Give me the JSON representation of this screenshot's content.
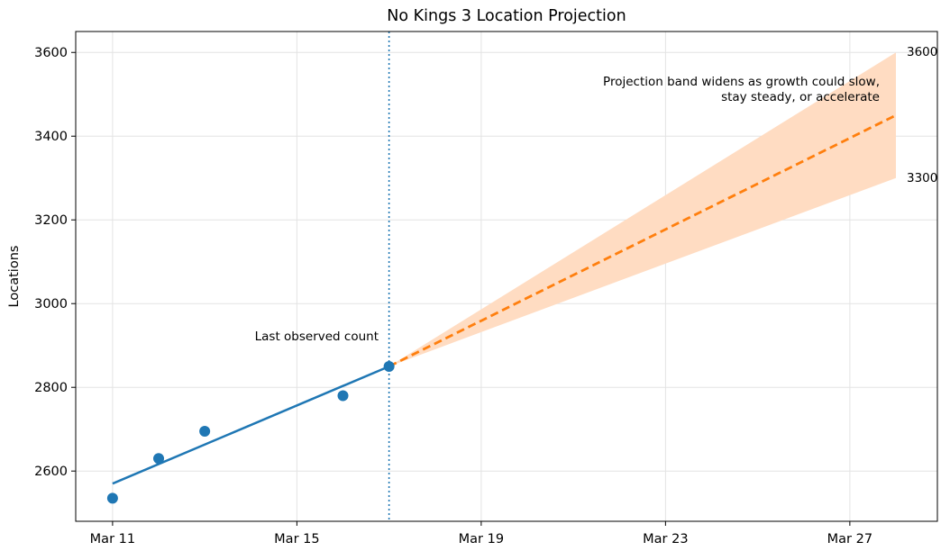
{
  "chart_data": {
    "type": "line",
    "title": "No Kings 3 Location Projection",
    "xlabel": "",
    "ylabel": "Locations",
    "ylim": [
      2480,
      3650
    ],
    "xlim_day": [
      10.2,
      28.9
    ],
    "x_ticks": [
      {
        "day": 11,
        "label": "Mar 11"
      },
      {
        "day": 15,
        "label": "Mar 15"
      },
      {
        "day": 19,
        "label": "Mar 19"
      },
      {
        "day": 23,
        "label": "Mar 23"
      },
      {
        "day": 27,
        "label": "Mar 27"
      }
    ],
    "y_ticks": [
      2600,
      2800,
      3000,
      3200,
      3400,
      3600
    ],
    "grid": true,
    "observed": {
      "name": "Observed",
      "color": "#1f77b4",
      "points": [
        {
          "day": 11,
          "value": 2535
        },
        {
          "day": 12,
          "value": 2630
        },
        {
          "day": 13,
          "value": 2695
        },
        {
          "day": 16,
          "value": 2780
        },
        {
          "day": 17,
          "value": 2850
        }
      ]
    },
    "trend": {
      "name": "Observed trend",
      "color": "#1f77b4",
      "points": [
        {
          "day": 11,
          "value": 2570
        },
        {
          "day": 17,
          "value": 2850
        }
      ]
    },
    "projection": {
      "name": "Projection",
      "color": "#ff7f0e",
      "points": [
        {
          "day": 17,
          "value": 2850
        },
        {
          "day": 28,
          "value": 3450
        }
      ]
    },
    "band": {
      "color": "#ffdcc2",
      "start": {
        "day": 17,
        "low": 2850,
        "high": 2850
      },
      "end": {
        "day": 28,
        "low": 3300,
        "high": 3600
      }
    },
    "last_observed_day": 17,
    "annotations": {
      "last_observed": "Last observed count",
      "band_line1": "Projection band widens as growth could slow,",
      "band_line2": "stay steady, or accelerate",
      "upper_value": "3600",
      "lower_value": "3300"
    }
  }
}
